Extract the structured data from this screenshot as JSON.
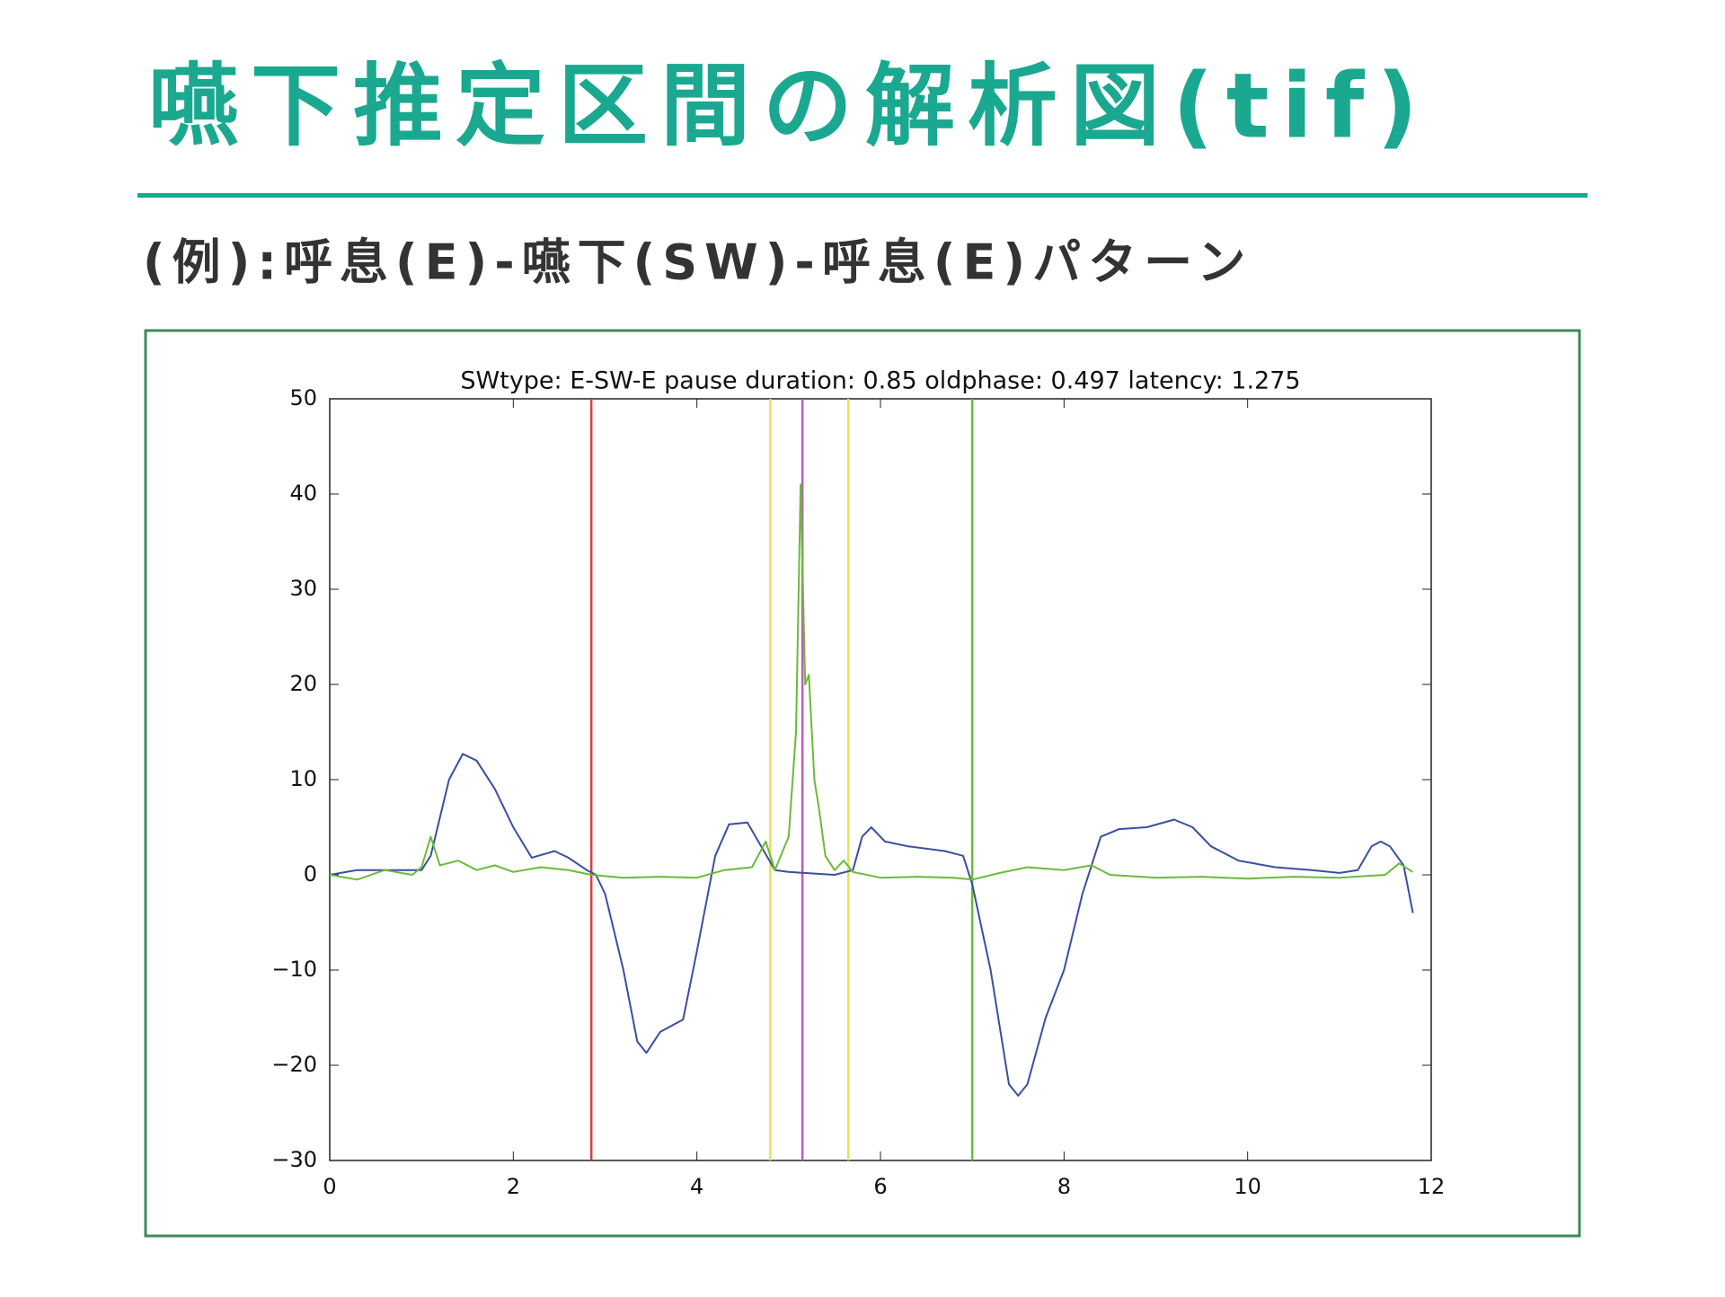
{
  "header": {
    "title": "嚥下推定区間の解析図(tif)",
    "subtitle": "(例):呼息(E)-嚥下(SW)-呼息(E)パターン"
  },
  "chart_data": {
    "type": "line",
    "title": "SWtype: E-SW-E pause duration: 0.85 oldphase: 0.497 latency: 1.275",
    "xlim": [
      0,
      12
    ],
    "xticks": [
      0,
      2,
      4,
      6,
      8,
      10,
      12
    ],
    "ylim": [
      -30,
      50
    ],
    "yticks": [
      {
        "value": -30,
        "label": "−30"
      },
      {
        "value": -20,
        "label": "−20"
      },
      {
        "value": -10,
        "label": "−10"
      },
      0,
      10,
      20,
      30,
      40,
      50
    ],
    "series": [
      {
        "color": "#3a4fa0",
        "x": [
          0,
          0.3,
          1.0,
          1.1,
          1.2,
          1.3,
          1.45,
          1.6,
          1.8,
          2.0,
          2.2,
          2.45,
          2.6,
          2.8,
          2.9,
          3.0,
          3.2,
          3.35,
          3.45,
          3.6,
          3.85,
          4.0,
          4.2,
          4.35,
          4.55,
          4.7,
          4.85,
          5.0,
          5.5,
          5.7,
          5.8,
          5.9,
          6.05,
          6.3,
          6.7,
          6.9,
          7.0,
          7.2,
          7.4,
          7.5,
          7.6,
          7.8,
          8.0,
          8.2,
          8.4,
          8.6,
          8.9,
          9.2,
          9.4,
          9.6,
          9.9,
          10.3,
          10.7,
          11.0,
          11.2,
          11.35,
          11.45,
          11.55,
          11.7,
          11.8
        ],
        "values": [
          0,
          0.5,
          0.5,
          2,
          6,
          10,
          12.7,
          12,
          9,
          5,
          1.8,
          2.5,
          1.8,
          0.5,
          0,
          -2,
          -10,
          -17.5,
          -18.7,
          -16.5,
          -15.2,
          -8,
          2,
          5.3,
          5.5,
          3,
          0.5,
          0.3,
          0,
          0.5,
          4,
          5,
          3.5,
          3,
          2.5,
          2,
          -1,
          -10,
          -22,
          -23.2,
          -22,
          -15,
          -10,
          -2,
          4,
          4.8,
          5,
          5.8,
          5,
          3,
          1.5,
          0.8,
          0.5,
          0.2,
          0.5,
          3,
          3.5,
          3,
          1,
          -4
        ]
      },
      {
        "color": "#6cba3a",
        "x": [
          0,
          0.3,
          0.6,
          0.9,
          1.0,
          1.1,
          1.2,
          1.4,
          1.6,
          1.8,
          2.0,
          2.3,
          2.6,
          2.85,
          3.2,
          3.6,
          4.0,
          4.3,
          4.6,
          4.75,
          4.85,
          5.0,
          5.08,
          5.13,
          5.18,
          5.22,
          5.28,
          5.33,
          5.4,
          5.5,
          5.6,
          5.7,
          6.0,
          6.4,
          6.8,
          7.0,
          7.3,
          7.6,
          8.0,
          8.3,
          8.5,
          9.0,
          9.5,
          10.0,
          10.5,
          11.0,
          11.5,
          11.65,
          11.8
        ],
        "values": [
          0,
          -0.5,
          0.5,
          0,
          0.8,
          4,
          1,
          1.5,
          0.5,
          1,
          0.3,
          0.8,
          0.5,
          0,
          -0.3,
          -0.2,
          -0.3,
          0.5,
          0.8,
          3.5,
          0.5,
          4,
          15,
          41,
          20,
          21,
          10,
          7,
          2,
          0.5,
          1.5,
          0.3,
          -0.3,
          -0.2,
          -0.3,
          -0.5,
          0.2,
          0.8,
          0.5,
          1,
          0,
          -0.3,
          -0.2,
          -0.4,
          -0.2,
          -0.3,
          0,
          1.2,
          0.3
        ]
      }
    ],
    "vlines": [
      {
        "x": 2.85,
        "color": "#d9403a"
      },
      {
        "x": 4.8,
        "color": "#e6e05a"
      },
      {
        "x": 5.15,
        "color": "#c05ab8"
      },
      {
        "x": 5.65,
        "color": "#e6e05a"
      },
      {
        "x": 7.0,
        "color": "#6cba3a"
      }
    ]
  }
}
